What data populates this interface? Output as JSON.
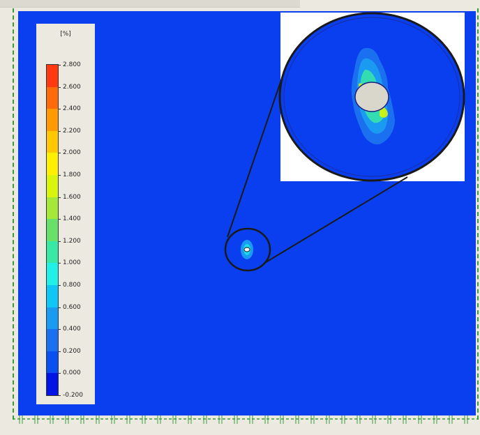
{
  "legend": {
    "unit": "[%]",
    "labels": [
      "2.800",
      "2.600",
      "2.400",
      "2.200",
      "2.000",
      "1.800",
      "1.600",
      "1.400",
      "1.200",
      "1.000",
      "0.800",
      "0.600",
      "0.400",
      "0.200",
      "0.000",
      "-0.200"
    ],
    "colors": [
      "#ff3a10",
      "#ff6a0a",
      "#ff9a00",
      "#ffc800",
      "#ffef00",
      "#d8f50a",
      "#a6e83a",
      "#6ae06a",
      "#3ae8a6",
      "#20f0e6",
      "#10c6f4",
      "#1a9af0",
      "#1a70ee",
      "#0a4ff0",
      "#0014e6"
    ]
  },
  "colors": {
    "background": "#0a3ff0",
    "hole": "#d9d6cc",
    "frame_dash": "#3a9a3a"
  }
}
